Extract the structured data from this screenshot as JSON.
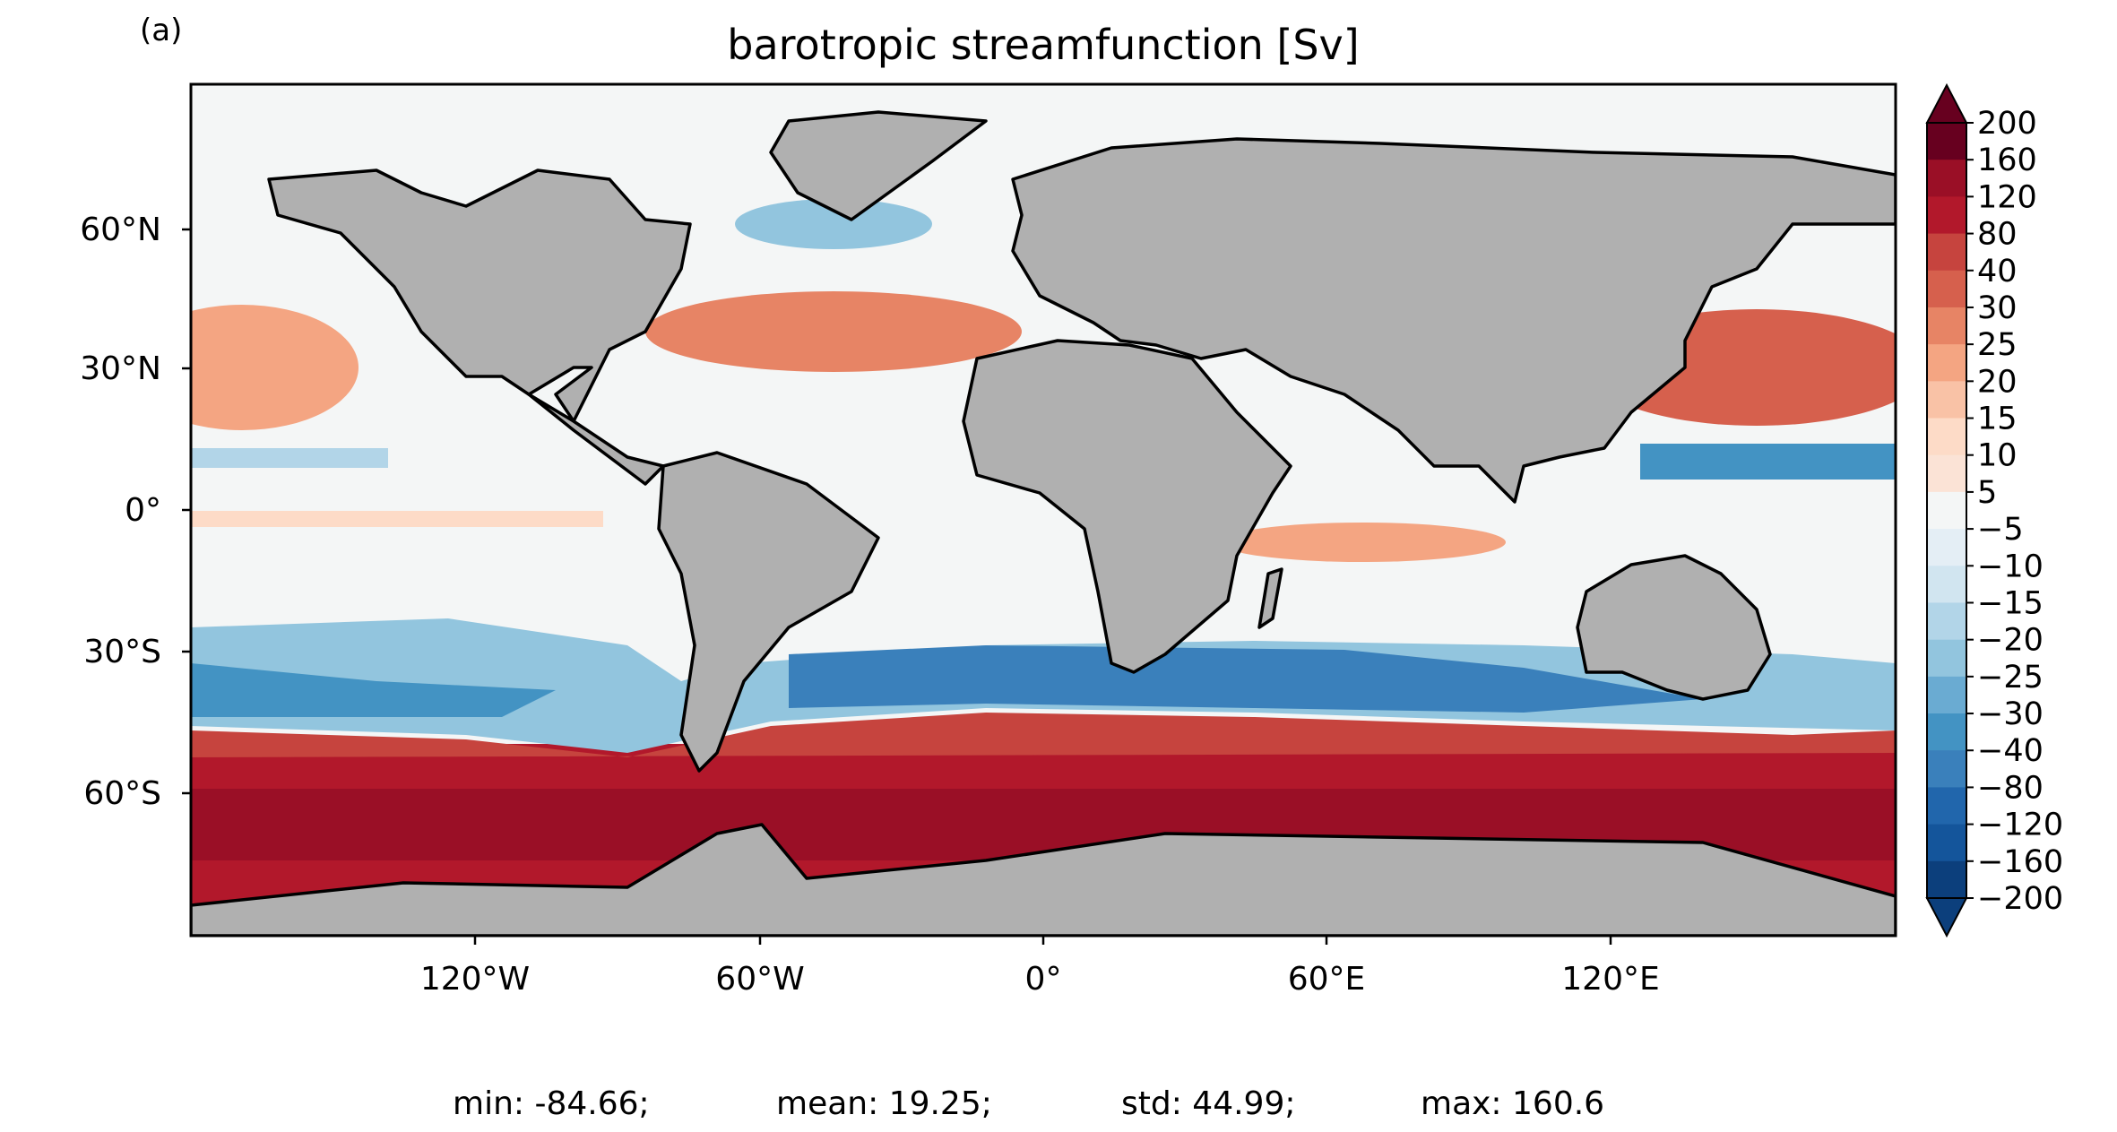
{
  "panel_label": "(a)",
  "title": "barotropic streamfunction [Sv]",
  "lat_ticks": [
    "60°N",
    "30°N",
    "0°",
    "30°S",
    "60°S"
  ],
  "lon_ticks": [
    "120°W",
    "60°W",
    "0°",
    "60°E",
    "120°E"
  ],
  "colorbar": {
    "levels": [
      -200,
      -160,
      -120,
      -80,
      -40,
      -30,
      -25,
      -20,
      -15,
      -10,
      -5,
      5,
      10,
      15,
      20,
      25,
      30,
      40,
      80,
      120,
      160,
      200
    ],
    "labels": [
      "200",
      "160",
      "120",
      "80",
      "40",
      "30",
      "25",
      "20",
      "15",
      "10",
      "5",
      "−5",
      "−10",
      "−15",
      "−20",
      "−25",
      "−30",
      "−40",
      "−80",
      "−120",
      "−160",
      "−200"
    ],
    "colors": [
      "#0c3f7c",
      "#14559b",
      "#2166ac",
      "#3a80bb",
      "#4393c3",
      "#6aabd2",
      "#92c5de",
      "#b2d5e8",
      "#d1e5f0",
      "#e4eef5",
      "#f4f6f6",
      "#fbe3d6",
      "#fddbc7",
      "#f9c2a6",
      "#f4a582",
      "#e78465",
      "#d6604d",
      "#c6443e",
      "#b2182b",
      "#9a0f26",
      "#67001f"
    ]
  },
  "stats": {
    "min": "min: -84.66;",
    "mean": "mean: 19.25;",
    "std": "std: 44.99;",
    "max": "max: 160.6"
  },
  "colors": {
    "land": "#b0b0b0",
    "ocean_neutral": "#f4f6f6",
    "coast": "#000000"
  }
}
